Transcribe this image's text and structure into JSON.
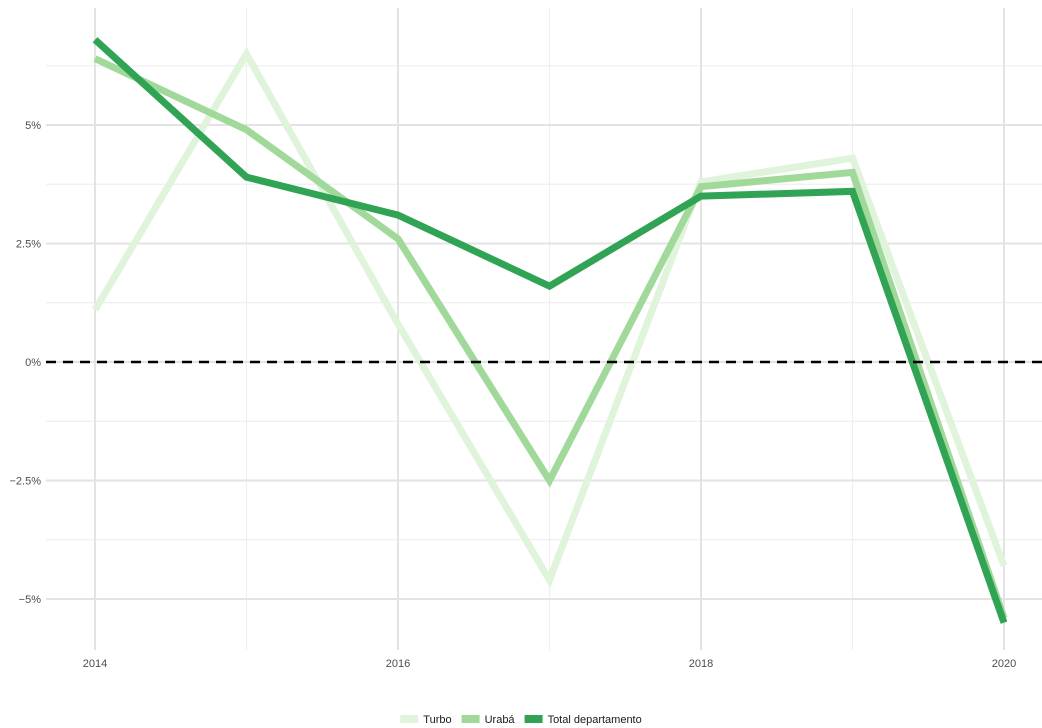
{
  "chart_data": {
    "type": "line",
    "title": "",
    "xlabel": "",
    "ylabel": "",
    "x": [
      2014,
      2015,
      2016,
      2017,
      2018,
      2019,
      2020
    ],
    "xticks": [
      2014,
      2016,
      2018,
      2020
    ],
    "xtick_labels": [
      "2014",
      "2016",
      "2018",
      "2020"
    ],
    "yticks": [
      -0.05,
      -0.025,
      0,
      0.025,
      0.05
    ],
    "ytick_labels": [
      "−5%",
      "−2.5%",
      "0%",
      "2.5%",
      "5%"
    ],
    "xlim": [
      2014,
      2020.25
    ],
    "ylim": [
      -0.06,
      0.075
    ],
    "grid": true,
    "reference_line": {
      "y": 0,
      "style": "dashed",
      "color": "#000000"
    },
    "legend_position": "bottom",
    "series": [
      {
        "name": "Turbo",
        "color": "#e0f3db",
        "values": [
          0.011,
          0.065,
          0.008,
          -0.046,
          0.038,
          0.043,
          -0.043
        ]
      },
      {
        "name": "Urabá",
        "color": "#a1d99b",
        "values": [
          0.064,
          0.049,
          0.026,
          -0.025,
          0.037,
          0.04,
          -0.054
        ]
      },
      {
        "name": "Total departamento",
        "color": "#31a354",
        "values": [
          0.068,
          0.039,
          0.031,
          0.016,
          0.035,
          0.036,
          -0.055
        ]
      }
    ]
  }
}
